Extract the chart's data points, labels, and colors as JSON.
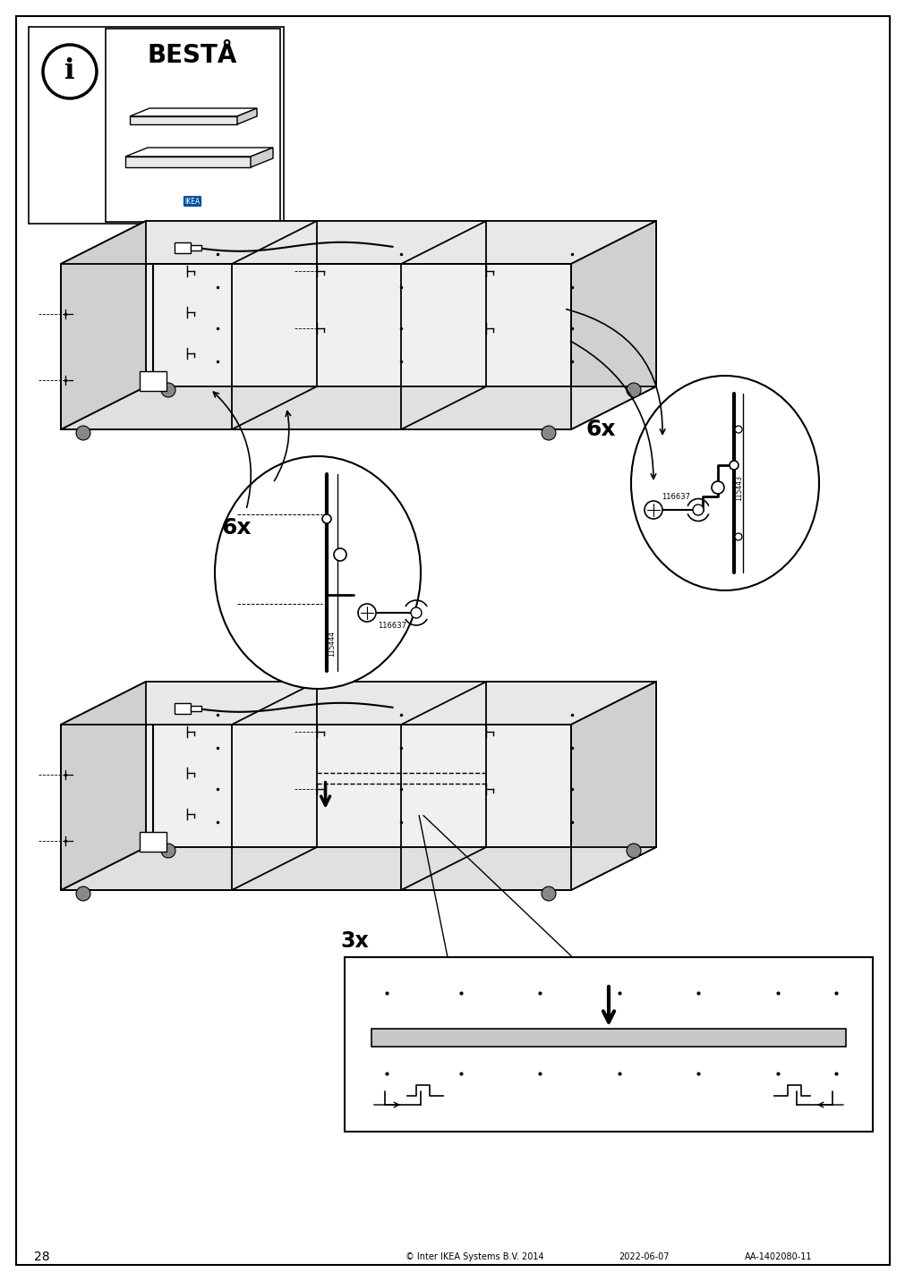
{
  "page_number": "28",
  "copyright_text": "© Inter IKEA Systems B.V. 2014",
  "date_text": "2022-06-07",
  "article_text": "AA-1402080-11",
  "title_text": "BESTÅ",
  "background_color": "#ffffff",
  "step1_count": "6x",
  "step2_count": "3x",
  "part_id1": "115443",
  "part_id2": "116637",
  "part_id3": "115444",
  "part_id4": "116637"
}
